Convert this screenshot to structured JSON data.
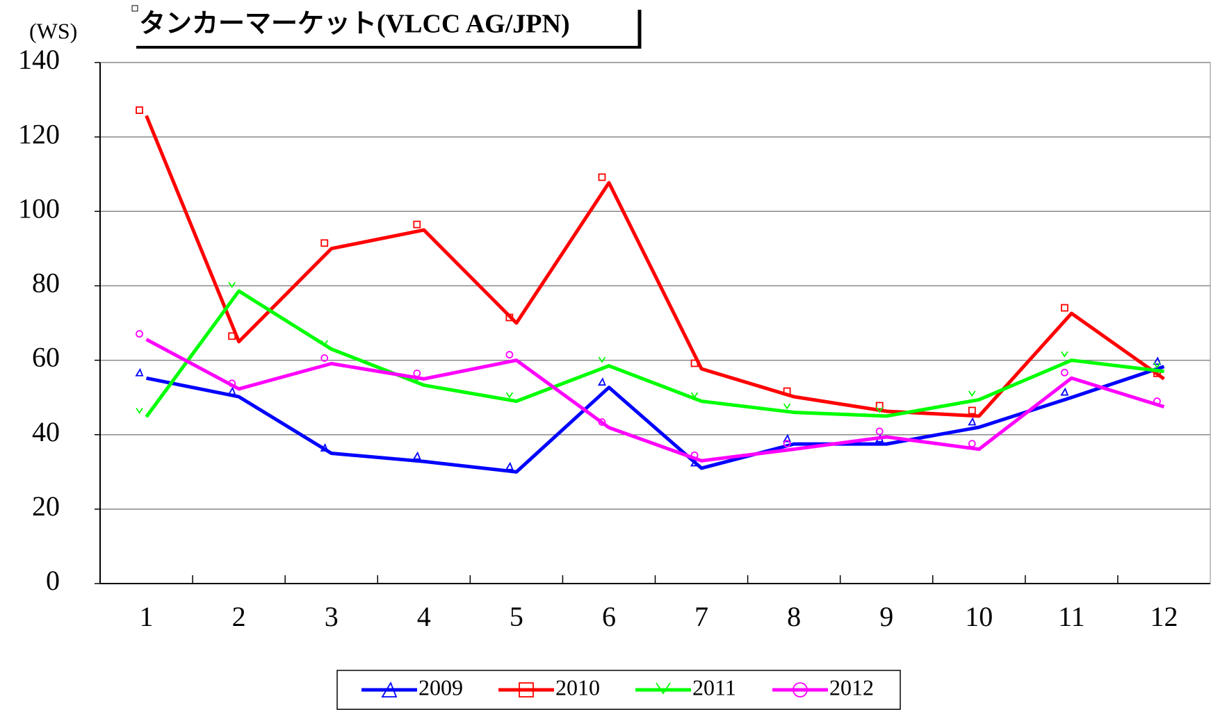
{
  "chart_data": {
    "type": "line",
    "title": "タンカーマーケット(VLCC AG/JPN)",
    "y_label": "(WS)",
    "categories": [
      "1",
      "2",
      "3",
      "4",
      "5",
      "6",
      "7",
      "8",
      "9",
      "10",
      "11",
      "12"
    ],
    "series": [
      {
        "name": "2009",
        "color": "#0000ff",
        "marker": "triangle",
        "values": [
          55.2,
          50.2,
          35,
          32.8,
          30,
          52.7,
          31,
          37.5,
          37.5,
          42,
          50,
          58.3
        ]
      },
      {
        "name": "2010",
        "color": "#ff0000",
        "marker": "square",
        "values": [
          125.7,
          65,
          90,
          95,
          70,
          107.7,
          57.7,
          50.2,
          46.3,
          45,
          72.6,
          55
        ]
      },
      {
        "name": "2011",
        "color": "#00ff00",
        "marker": "chevron",
        "values": [
          44.8,
          78.6,
          63,
          53.3,
          49,
          58.5,
          49,
          46,
          45,
          49.4,
          60,
          57
        ]
      },
      {
        "name": "2012",
        "color": "#ff00ff",
        "marker": "circle",
        "values": [
          65.6,
          52.3,
          59.1,
          55,
          60,
          41.9,
          33,
          36.1,
          39.4,
          36.1,
          55.2,
          47.5
        ]
      }
    ],
    "ylim": [
      0,
      140
    ],
    "yticks": [
      0,
      20,
      40,
      60,
      80,
      100,
      120,
      140
    ],
    "grid": true,
    "legend": "bottom"
  }
}
